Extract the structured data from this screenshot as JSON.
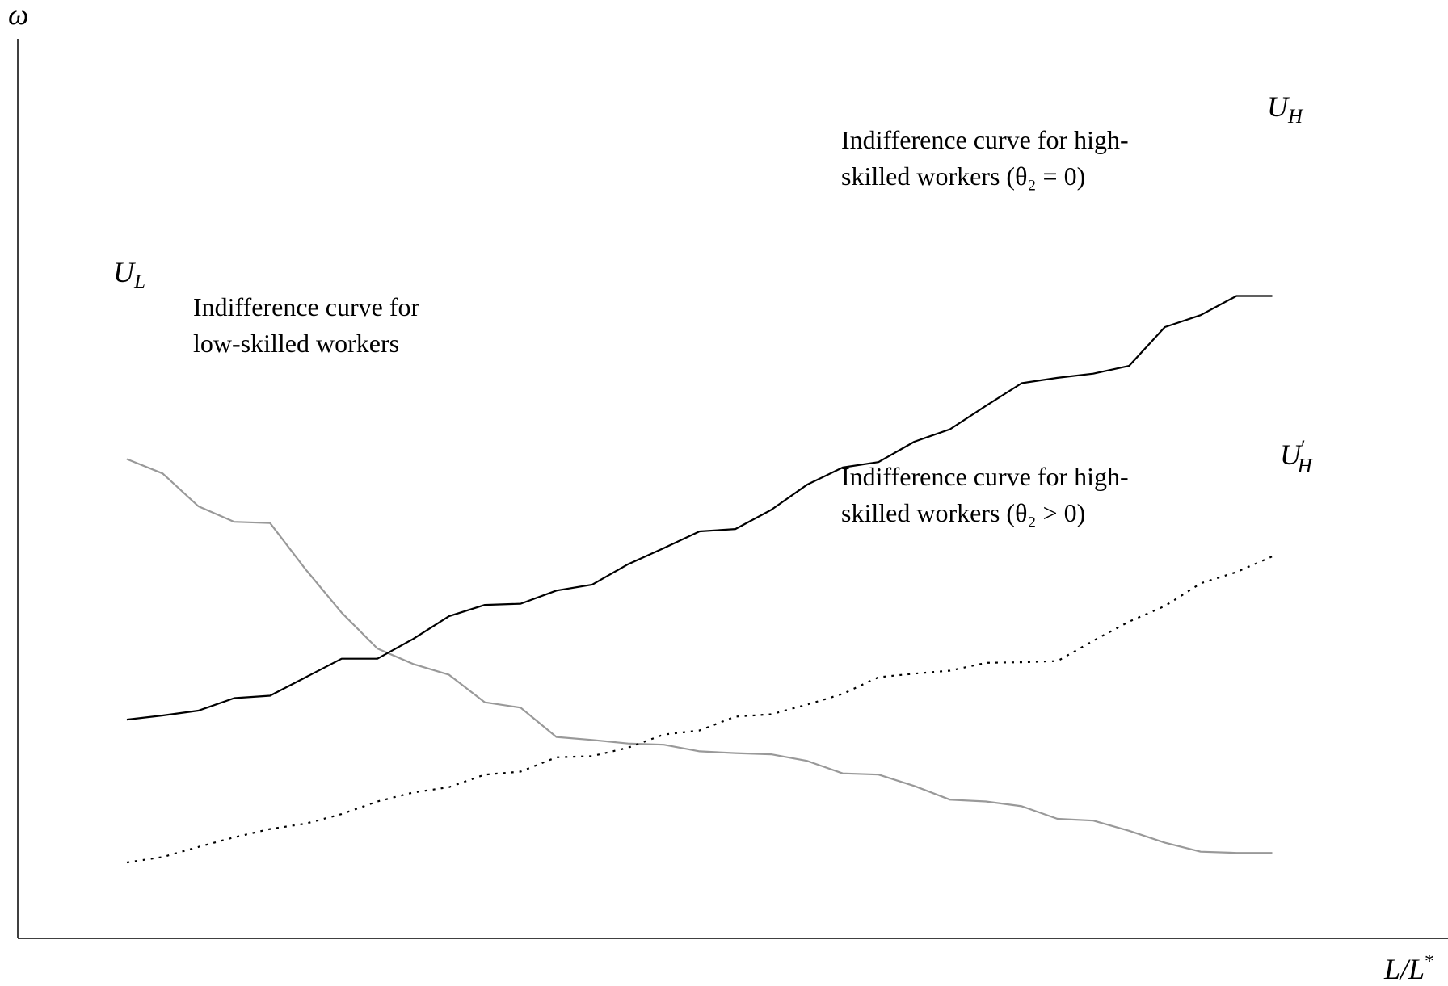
{
  "chart_data": {
    "type": "line",
    "xlabel": "L/L*",
    "xlabel_parts": {
      "base": "L/L",
      "sup": "*"
    },
    "ylabel": "ω",
    "xlim": [
      0,
      100
    ],
    "ylim": [
      0,
      100
    ],
    "grid": false,
    "x": [
      0,
      3.18,
      6.36,
      9.54,
      12.72,
      15.9,
      19.08,
      22.26,
      25.44,
      28.62,
      31.8,
      34.98,
      38.16,
      41.34,
      44.52,
      47.7,
      50.88,
      54.06,
      57.24,
      60.42,
      63.6,
      66.78,
      69.96,
      73.14,
      76.32,
      79.5,
      82.68,
      85.86,
      89.04,
      92.22,
      95.4,
      98.58,
      101.76
    ],
    "series": [
      {
        "name": "U_L",
        "label": {
          "base": "U",
          "sub": "L"
        },
        "annotation": [
          "Indifference curve for",
          "low-skilled workers"
        ],
        "color": "#999999",
        "style": "solid",
        "values": [
          72.5,
          70.1,
          64.6,
          62.0,
          61.8,
          54.0,
          46.8,
          40.8,
          38.2,
          36.4,
          31.8,
          30.9,
          26.0,
          25.5,
          24.9,
          24.7,
          23.6,
          23.3,
          23.1,
          22.0,
          19.9,
          19.7,
          17.8,
          15.5,
          15.2,
          14.4,
          12.3,
          12.0,
          10.3,
          8.3,
          6.8,
          6.6,
          6.6
        ]
      },
      {
        "name": "U_H",
        "label": {
          "base": "U",
          "sub": "H"
        },
        "annotation": [
          "Indifference curve for high-",
          "skilled workers (θ₂ = 0)"
        ],
        "color": "#000000",
        "style": "solid",
        "values": [
          28.9,
          29.6,
          30.4,
          32.5,
          32.9,
          36.0,
          39.1,
          39.1,
          42.4,
          46.2,
          48.1,
          48.3,
          50.5,
          51.5,
          54.9,
          57.6,
          60.4,
          60.8,
          64.0,
          68.2,
          71.1,
          72.0,
          75.4,
          77.5,
          81.4,
          85.2,
          86.1,
          86.8,
          88.1,
          94.6,
          96.6,
          99.8,
          99.8
        ]
      },
      {
        "name": "U'_H",
        "label": {
          "base": "U",
          "prime": "′",
          "sub": "H"
        },
        "annotation": [
          "Indifference curve for high-",
          "skilled workers (θ₂ > 0)"
        ],
        "color": "#000000",
        "style": "dotted",
        "values": [
          5.0,
          5.9,
          7.6,
          9.2,
          10.6,
          11.5,
          13.1,
          15.2,
          16.7,
          17.6,
          19.7,
          20.2,
          22.6,
          22.8,
          24.2,
          26.4,
          27.1,
          29.4,
          29.8,
          31.4,
          33.2,
          36.0,
          36.6,
          37.1,
          38.4,
          38.5,
          38.7,
          42.1,
          45.3,
          47.9,
          51.7,
          53.6,
          56.2
        ]
      }
    ]
  }
}
